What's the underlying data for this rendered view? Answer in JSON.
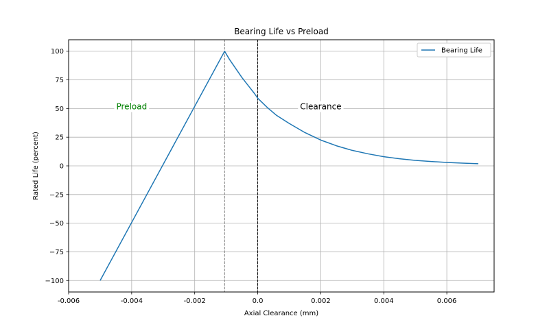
{
  "chart_data": {
    "type": "line",
    "title": "Bearing Life vs Preload",
    "xlabel": "Axial Clearance (mm)",
    "ylabel": "Rated Life (percent)",
    "xlim": [
      -0.006,
      0.0075
    ],
    "ylim": [
      -110,
      110
    ],
    "x_ticks": [
      -0.006,
      -0.004,
      -0.002,
      0.0,
      0.002,
      0.004,
      0.006
    ],
    "x_tick_labels": [
      "-0.006",
      "-0.004",
      "-0.002",
      "0.0",
      "0.002",
      "0.004",
      "0.006"
    ],
    "y_ticks": [
      100,
      75,
      50,
      25,
      0,
      -25,
      -50,
      -75,
      -100
    ],
    "y_tick_labels": [
      "100",
      "75",
      "50",
      "25",
      "0",
      "−25",
      "−50",
      "−75",
      "−100"
    ],
    "grid": true,
    "legend": {
      "position": "top-right"
    },
    "series": [
      {
        "name": "Bearing Life",
        "color": "#1f77b4",
        "x": [
          -0.005,
          -0.00105,
          -0.0009,
          -0.0007,
          -0.0005,
          -0.0003,
          -0.0001,
          0.0,
          0.0003,
          0.0006,
          0.001,
          0.0015,
          0.002,
          0.0025,
          0.003,
          0.0035,
          0.004,
          0.0045,
          0.005,
          0.0055,
          0.006,
          0.0065,
          0.007
        ],
        "y": [
          -100,
          100,
          93,
          85,
          77,
          70,
          63,
          59,
          51,
          44,
          37,
          29,
          22.5,
          17.5,
          13.5,
          10.5,
          8,
          6.2,
          4.8,
          3.8,
          3.0,
          2.4,
          1.9
        ]
      }
    ],
    "reference_lines": [
      {
        "x": -0.00105,
        "color": "#808080",
        "style": "dashed"
      },
      {
        "x": 0.0,
        "color": "#000000",
        "style": "dashed"
      }
    ],
    "annotations": [
      {
        "text": "Preload",
        "x": -0.004,
        "y": 52,
        "color": "#008000"
      },
      {
        "text": "Clearance",
        "x": 0.002,
        "y": 52,
        "color": "#000000"
      }
    ]
  }
}
